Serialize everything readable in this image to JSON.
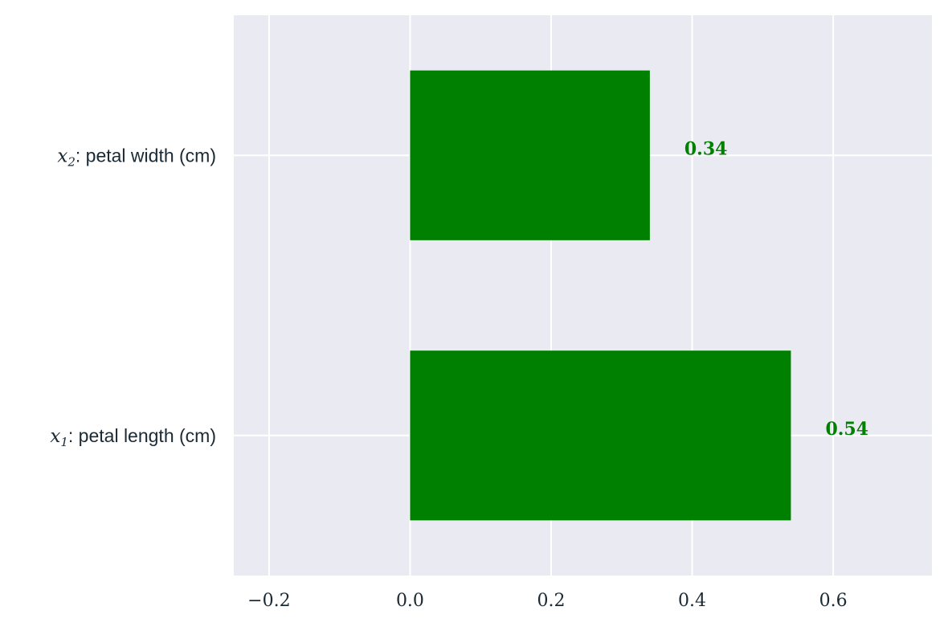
{
  "chart_data": {
    "type": "bar",
    "orientation": "horizontal",
    "categories": [
      {
        "var": "x",
        "sub": "1",
        "name": ": petal length (cm)"
      },
      {
        "var": "x",
        "sub": "2",
        "name": ": petal width (cm)"
      }
    ],
    "values": [
      0.54,
      0.34
    ],
    "value_labels": [
      "0.54",
      "0.34"
    ],
    "xlim": [
      -0.25,
      0.74
    ],
    "xticks": [
      -0.2,
      0.0,
      0.2,
      0.4,
      0.6
    ],
    "xtick_labels": [
      "−0.2",
      "0.0",
      "0.2",
      "0.4",
      "0.6"
    ],
    "grid": true,
    "colors": {
      "bar": "#008000",
      "label": "#008000",
      "plot_background": "#eaeaf2",
      "grid": "#ffffff"
    }
  }
}
